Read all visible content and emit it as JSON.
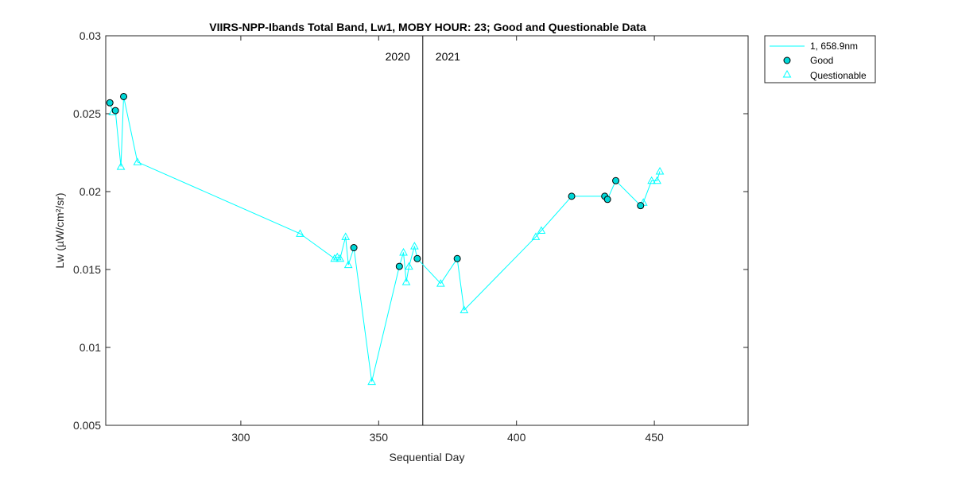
{
  "chart_data": {
    "type": "line",
    "title": "VIIRS-NPP-Ibands Total Band,  Lw1, MOBY HOUR: 23;  Good and Questionable Data",
    "xlabel": "Sequential Day",
    "ylabel": "Lw (µW/cm²/sr)",
    "xlim": [
      251,
      484
    ],
    "ylim": [
      0.005,
      0.03
    ],
    "xticks": [
      300,
      350,
      400,
      450
    ],
    "yticks": [
      0.005,
      0.01,
      0.015,
      0.02,
      0.025,
      0.03
    ],
    "ytick_labels": [
      "0.005",
      "0.01",
      "0.015",
      "0.02",
      "0.025",
      "0.03"
    ],
    "grid": false,
    "legend_position": "outside-top-right",
    "color": "#00FFFF",
    "marker_fill_good": "#00D8D8",
    "year_divider": {
      "x": 366,
      "left_label": "2020",
      "right_label": "2021"
    },
    "series": [
      {
        "name": "1, 658.9nm",
        "x": [
          252.5,
          253.5,
          254.5,
          256.5,
          257.5,
          262.5,
          321.5,
          334,
          335,
          336,
          338,
          339,
          341,
          347.5,
          357.5,
          359,
          360,
          361,
          363,
          364,
          372.5,
          378.5,
          381,
          407,
          409,
          420,
          432,
          433,
          436,
          445,
          446,
          449,
          451,
          452
        ],
        "y": [
          0.0257,
          0.0251,
          0.0252,
          0.0216,
          0.0261,
          0.0219,
          0.0173,
          0.0157,
          0.0158,
          0.0157,
          0.0171,
          0.0153,
          0.0164,
          0.0078,
          0.0152,
          0.0161,
          0.0142,
          0.0152,
          0.0165,
          0.0157,
          0.0141,
          0.0157,
          0.0124,
          0.0171,
          0.0175,
          0.0197,
          0.0197,
          0.0195,
          0.0207,
          0.0191,
          0.0193,
          0.0207,
          0.0207,
          0.0213
        ]
      },
      {
        "name": "Good",
        "x": [
          252.5,
          254.5,
          257.5,
          341,
          357.5,
          364,
          378.5,
          420,
          432,
          433,
          436,
          445
        ],
        "y": [
          0.0257,
          0.0252,
          0.0261,
          0.0164,
          0.0152,
          0.0157,
          0.0157,
          0.0197,
          0.0197,
          0.0195,
          0.0207,
          0.0191
        ]
      },
      {
        "name": "Questionable",
        "x": [
          253.5,
          256.5,
          262.5,
          321.5,
          334,
          335,
          336,
          338,
          339,
          347.5,
          359,
          360,
          361,
          363,
          372.5,
          381,
          407,
          409,
          446,
          449,
          451,
          452
        ],
        "y": [
          0.0251,
          0.0216,
          0.0219,
          0.0173,
          0.0157,
          0.0158,
          0.0157,
          0.0171,
          0.0153,
          0.0078,
          0.0161,
          0.0142,
          0.0152,
          0.0165,
          0.0141,
          0.0124,
          0.0171,
          0.0175,
          0.0193,
          0.0207,
          0.0207,
          0.0213
        ]
      }
    ]
  }
}
